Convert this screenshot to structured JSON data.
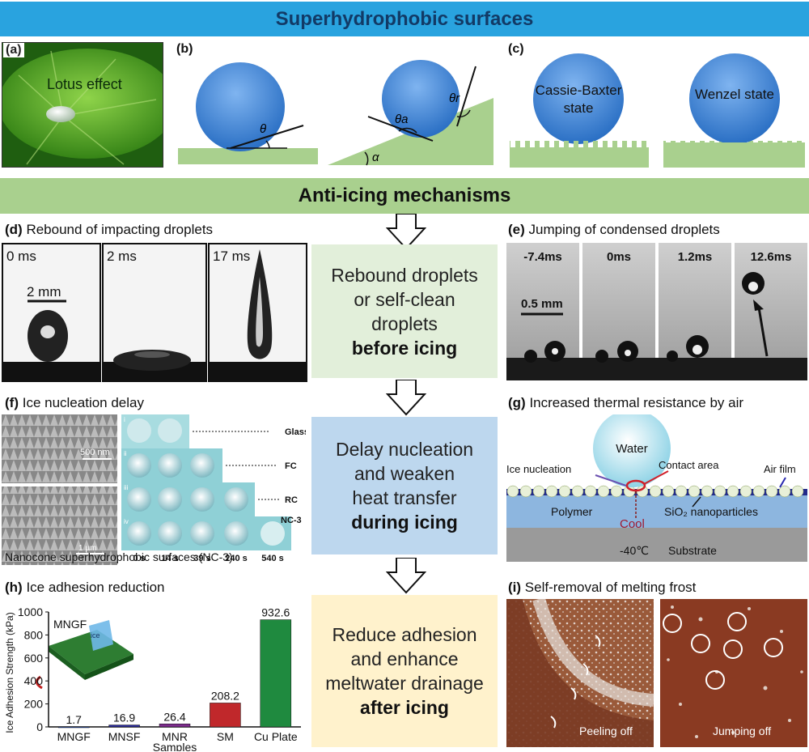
{
  "header": {
    "title": "Superhydrophobic surfaces"
  },
  "mechanisms_title": "Anti-icing mechanisms",
  "panels": {
    "a": {
      "label": "(a)",
      "caption": "Lotus effect"
    },
    "b": {
      "label": "(b)",
      "theta": "θ",
      "theta_a": "θa",
      "theta_r": "θr",
      "alpha": "α"
    },
    "c": {
      "label": "(c)",
      "cassie": [
        "Cassie-Baxter",
        "state"
      ],
      "wenzel": "Wenzel state"
    },
    "d": {
      "label": "(d)",
      "title": "Rebound of impacting droplets",
      "frames": [
        "0 ms",
        "2 ms",
        "17 ms"
      ],
      "scale": "2 mm"
    },
    "e": {
      "label": "(e)",
      "title": "Jumping of condensed droplets",
      "frames": [
        "-7.4ms",
        "0ms",
        "1.2ms",
        "12.6ms"
      ],
      "scale": "0.5 mm"
    },
    "f": {
      "label": "(f)",
      "title": "Ice nucleation delay",
      "sem_scale": "500 nm",
      "sem_scale2": "1 µm",
      "rows": [
        "Glass",
        "FC",
        "RC",
        "NC-3"
      ],
      "row_numerals": [
        "i",
        "ii",
        "iii",
        "iv"
      ],
      "times": [
        "0 s",
        "14 s",
        "39 s",
        "240 s",
        "540 s"
      ],
      "caption": "Nanocone superhydrophobic surfaces (NC-3)"
    },
    "g": {
      "label": "(g)",
      "title": "Increased thermal resistance by air",
      "water": "Water",
      "ice_nucleation": "Ice nucleation",
      "contact_area": "Contact area",
      "air_film": "Air film",
      "polymer": "Polymer",
      "cool": "Cool",
      "sio2": "SiO₂ nanoparticles",
      "temp": "-40℃",
      "substrate": "Substrate"
    },
    "h": {
      "label": "(h)",
      "title": "Ice adhesion reduction",
      "inset_label": "MNGF",
      "inset_ice": "ice"
    },
    "i": {
      "label": "(i)",
      "title": "Self-removal of melting frost",
      "peeling": "Peeling off",
      "jumping": "Jumping off"
    }
  },
  "stages": [
    {
      "lines": [
        "Rebound droplets",
        "or self-clean",
        "droplets"
      ],
      "bold": "before icing",
      "color": "#e2efda"
    },
    {
      "lines": [
        "Delay nucleation",
        "and weaken",
        "heat transfer"
      ],
      "bold": "during icing",
      "color": "#bdd7ee"
    },
    {
      "lines": [
        "Reduce adhesion",
        "and enhance",
        "meltwater drainage"
      ],
      "bold": "after icing",
      "color": "#fff2cc"
    }
  ],
  "chart_data": {
    "type": "bar",
    "categories": [
      "MNGF",
      "MNSF",
      "MNR",
      "SM",
      "Cu Plate"
    ],
    "values": [
      1.7,
      16.9,
      26.4,
      208.2,
      932.6
    ],
    "value_labels": [
      "1.7",
      "16.9",
      "26.4",
      "208.2",
      "932.6"
    ],
    "colors": [
      "#1f3f8f",
      "#2c2ca0",
      "#7e2c8e",
      "#c0282b",
      "#1f8a3f"
    ],
    "xlabel": "Samples",
    "ylabel": "Ice Adhesion Strength (kPa)",
    "ylim": [
      0,
      1000
    ],
    "yticks": [
      0,
      200,
      400,
      600,
      800,
      1000
    ]
  }
}
